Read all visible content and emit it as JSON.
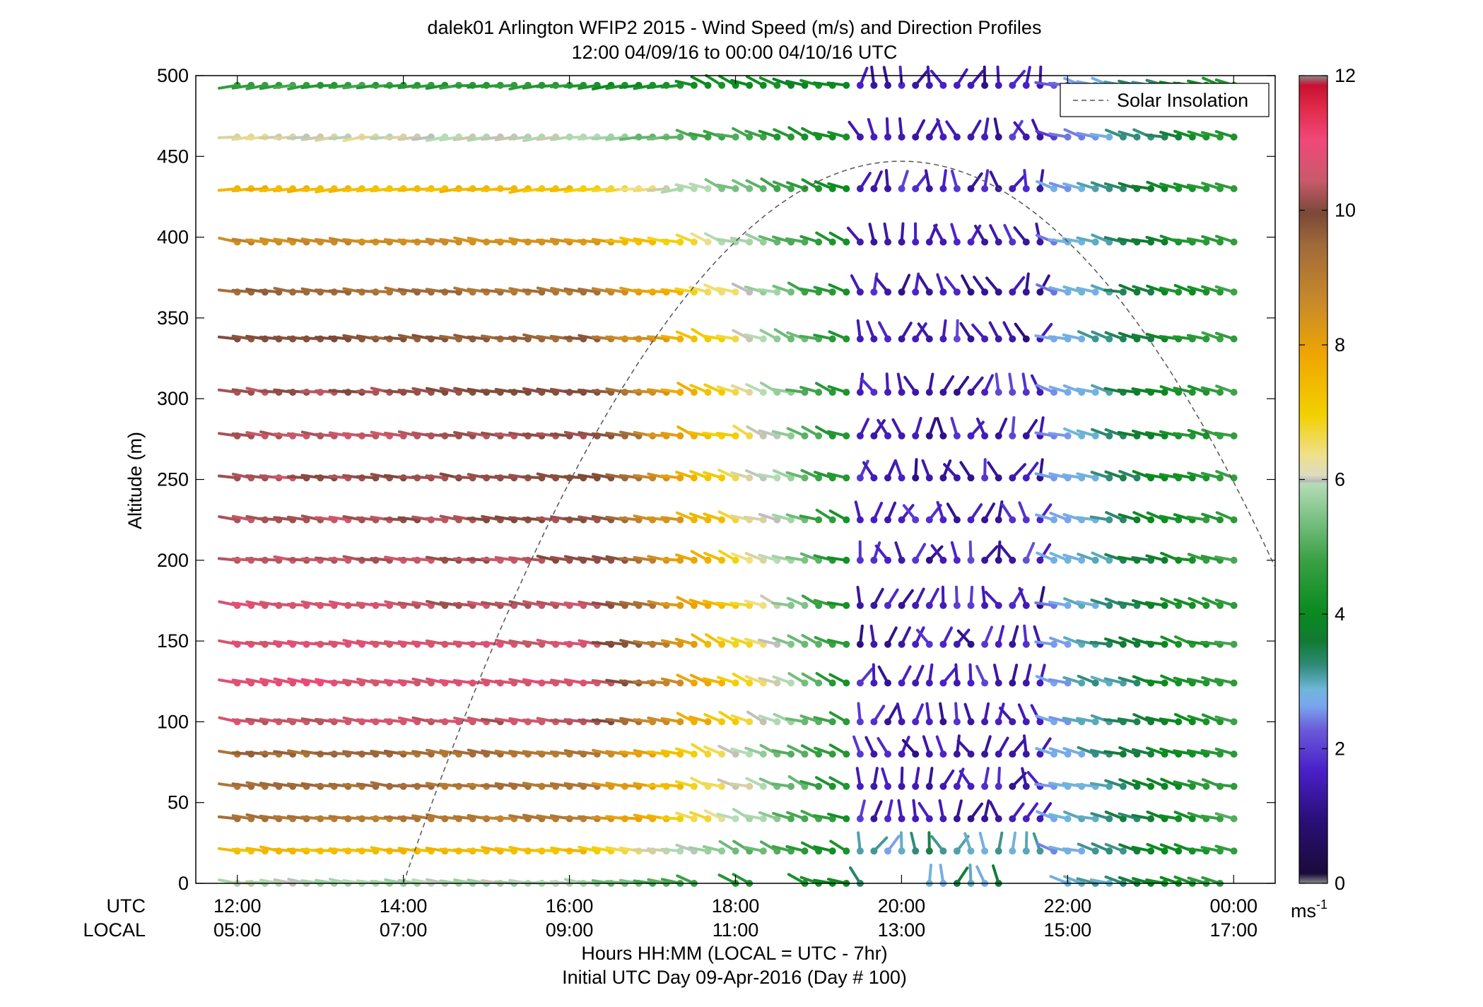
{
  "chart_data": {
    "type": "wind-barb",
    "title": "dalek01 Arlington WFIP2 2015 - Wind Speed (m/s) and Direction Profiles",
    "subtitle": "12:00 04/09/16 to 00:00 04/10/16  UTC",
    "ylabel": "Altitude (m)",
    "xlabel": "Hours HH:MM  (LOCAL = UTC - 7hr)",
    "xlabel2": "Initial UTC Day 09-Apr-2016 (Day # 100)",
    "row_labels": {
      "utc": "UTC",
      "local": "LOCAL"
    },
    "x_ticks_utc": [
      "12:00",
      "14:00",
      "16:00",
      "18:00",
      "20:00",
      "22:00",
      "00:00"
    ],
    "x_ticks_local": [
      "05:00",
      "07:00",
      "09:00",
      "11:00",
      "13:00",
      "15:00",
      "17:00"
    ],
    "x_range_hours": [
      11.5,
      24.5
    ],
    "y_ticks": [
      "0",
      "50",
      "100",
      "150",
      "200",
      "250",
      "300",
      "350",
      "400",
      "450",
      "500"
    ],
    "ylim": [
      0,
      500
    ],
    "colorbar": {
      "ticks": [
        "0",
        "2",
        "4",
        "6",
        "8",
        "10",
        "12"
      ],
      "range": [
        0,
        12
      ],
      "unit_label": "ms",
      "unit_exponent": "-1"
    },
    "legend": {
      "label": "Solar Insolation",
      "placement": "top-right"
    },
    "solar_insolation": {
      "peak_hour": 20.0,
      "peak_altitude": 447,
      "start_hour": 14.0,
      "start_altitude": 0,
      "end_hour": 24.5,
      "end_altitude": 193
    },
    "altitudes": [
      0,
      20,
      40,
      60,
      80,
      100,
      124,
      148,
      172,
      200,
      225,
      251,
      277,
      304,
      337,
      366,
      397,
      430,
      462,
      494
    ],
    "time_step_hours": 0.1667,
    "time_start_hours": 12.0,
    "time_end_hours": 24.0,
    "wind_regimes_by_hour": [
      {
        "hours": [
          12.0,
          17.5
        ],
        "description": "westerly flow"
      },
      {
        "hours": [
          17.5,
          19.5
        ],
        "description": "west-northwesterly"
      },
      {
        "hours": [
          19.5,
          21.5
        ],
        "description": "light and variable"
      },
      {
        "hours": [
          21.5,
          24.0
        ],
        "description": "westerly"
      }
    ],
    "speed_profile_at_12utc_ms": [
      6.0,
      7.5,
      9.0,
      9.2,
      9.3,
      10.5,
      10.8,
      10.7,
      10.6,
      10.5,
      10.4,
      10.3,
      10.4,
      10.2,
      9.8,
      9.4,
      8.6,
      7.6,
      6.3,
      4.8
    ]
  }
}
